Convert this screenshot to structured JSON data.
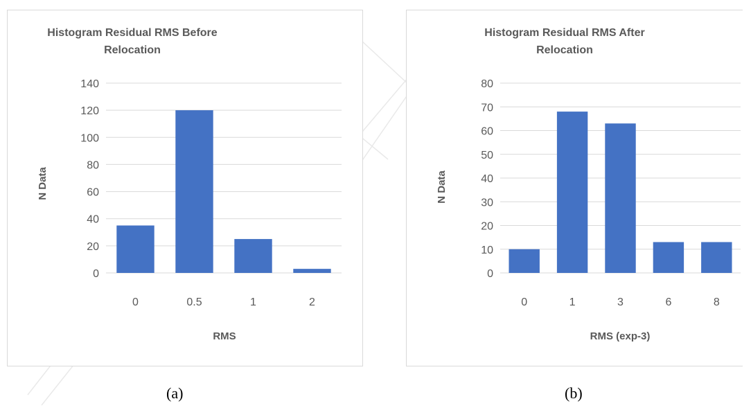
{
  "chart_data": [
    {
      "type": "bar",
      "title": "Histogram Residual RMS Before Relocation",
      "title_lines": [
        "Histogram Residual RMS Before",
        "Relocation"
      ],
      "xlabel": "RMS",
      "ylabel": "N Data",
      "categories": [
        "0",
        "0.5",
        "1",
        "2"
      ],
      "values": [
        35,
        120,
        25,
        3
      ],
      "ylim": [
        0,
        140
      ],
      "yticks": [
        "0",
        "20",
        "40",
        "60",
        "80",
        "100",
        "120",
        "140"
      ],
      "grid": true,
      "bar_color": "#4472C4"
    },
    {
      "type": "bar",
      "title": "Histogram Residual RMS After Relocation",
      "title_lines": [
        "Histogram Residual RMS After",
        "Relocation"
      ],
      "xlabel": "RMS (exp-3)",
      "ylabel": "N Data",
      "categories": [
        "0",
        "1",
        "3",
        "6",
        "8"
      ],
      "values": [
        10,
        68,
        63,
        13,
        13
      ],
      "ylim": [
        0,
        80
      ],
      "yticks": [
        "0",
        "10",
        "20",
        "30",
        "40",
        "50",
        "60",
        "70",
        "80"
      ],
      "grid": true,
      "bar_color": "#4472C4"
    }
  ],
  "captions": {
    "a": "(a)",
    "b": "(b)"
  },
  "colors": {
    "gridline": "#d9d9d9",
    "text": "#595959",
    "label": "#404040",
    "watermark": "#e6e6e6"
  }
}
